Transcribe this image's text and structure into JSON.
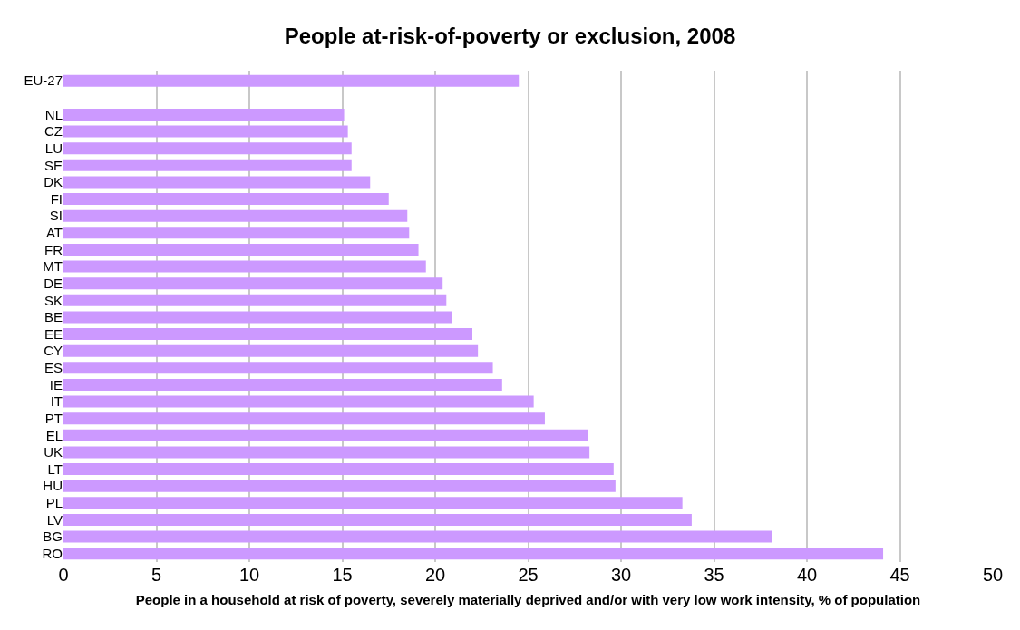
{
  "chart_data": {
    "type": "bar",
    "orientation": "horizontal",
    "title": "People at-risk-of-poverty or exclusion, 2008",
    "xlabel": "People in a household at risk of poverty, severely materially deprived and/or with very low work intensity, % of population",
    "categories": [
      "EU-27",
      null,
      "NL",
      "CZ",
      "LU",
      "SE",
      "DK",
      "FI",
      "SI",
      "AT",
      "FR",
      "MT",
      "DE",
      "SK",
      "BE",
      "EE",
      "CY",
      "ES",
      "IE",
      "IT",
      "PT",
      "EL",
      "UK",
      "LT",
      "HU",
      "PL",
      "LV",
      "BG",
      "RO"
    ],
    "values": [
      24.5,
      null,
      15.1,
      15.3,
      15.5,
      15.5,
      16.5,
      17.5,
      18.5,
      18.6,
      19.1,
      19.5,
      20.4,
      20.6,
      20.9,
      22.0,
      22.3,
      23.1,
      23.6,
      25.3,
      25.9,
      28.2,
      28.3,
      29.6,
      29.7,
      33.3,
      33.8,
      38.1,
      44.1
    ],
    "color": "#cc99ff",
    "xlim": [
      0,
      50
    ],
    "xticks": [
      0,
      5,
      10,
      15,
      20,
      25,
      30,
      35,
      40,
      45,
      50
    ],
    "grid": "x"
  }
}
